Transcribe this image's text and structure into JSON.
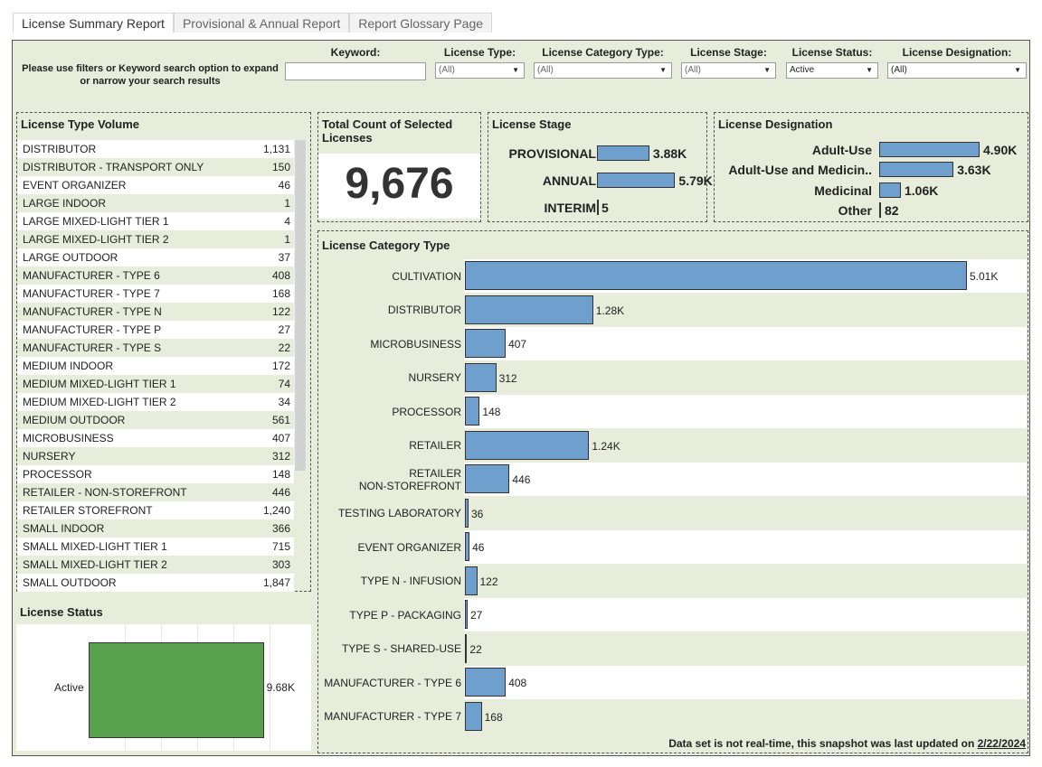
{
  "tabs": [
    {
      "label": "License Summary Report",
      "active": true
    },
    {
      "label": "Provisional & Annual Report",
      "active": false
    },
    {
      "label": "Report Glossary Page",
      "active": false
    }
  ],
  "filters": {
    "hint": "Please use filters or Keyword search option to expand or narrow your search results",
    "keyword": {
      "label": "Keyword:",
      "value": ""
    },
    "license_type": {
      "label": "License Type:",
      "value": "(All)"
    },
    "category_type": {
      "label": "License Category Type:",
      "value": "(All)"
    },
    "stage": {
      "label": "License Stage:",
      "value": "(All)"
    },
    "status": {
      "label": "License Status:",
      "value": "Active"
    },
    "designation": {
      "label": "License Designation:",
      "value": "(All)"
    }
  },
  "type_volume": {
    "title": "License Type Volume",
    "rows": [
      {
        "name": "DISTRIBUTOR",
        "count": "1,131"
      },
      {
        "name": "DISTRIBUTOR - TRANSPORT ONLY",
        "count": "150"
      },
      {
        "name": "EVENT ORGANIZER",
        "count": "46"
      },
      {
        "name": "LARGE INDOOR",
        "count": "1"
      },
      {
        "name": "LARGE MIXED-LIGHT TIER 1",
        "count": "4"
      },
      {
        "name": "LARGE MIXED-LIGHT TIER 2",
        "count": "1"
      },
      {
        "name": "LARGE OUTDOOR",
        "count": "37"
      },
      {
        "name": "MANUFACTURER - TYPE 6",
        "count": "408"
      },
      {
        "name": "MANUFACTURER - TYPE 7",
        "count": "168"
      },
      {
        "name": "MANUFACTURER - TYPE N",
        "count": "122"
      },
      {
        "name": "MANUFACTURER - TYPE P",
        "count": "27"
      },
      {
        "name": "MANUFACTURER - TYPE S",
        "count": "22"
      },
      {
        "name": "MEDIUM INDOOR",
        "count": "172"
      },
      {
        "name": "MEDIUM MIXED-LIGHT TIER 1",
        "count": "74"
      },
      {
        "name": "MEDIUM MIXED-LIGHT TIER 2",
        "count": "34"
      },
      {
        "name": "MEDIUM OUTDOOR",
        "count": "561"
      },
      {
        "name": "MICROBUSINESS",
        "count": "407"
      },
      {
        "name": "NURSERY",
        "count": "312"
      },
      {
        "name": "PROCESSOR",
        "count": "148"
      },
      {
        "name": "RETAILER - NON-STOREFRONT",
        "count": "446"
      },
      {
        "name": "RETAILER STOREFRONT",
        "count": "1,240"
      },
      {
        "name": "SMALL INDOOR",
        "count": "366"
      },
      {
        "name": "SMALL MIXED-LIGHT TIER 1",
        "count": "715"
      },
      {
        "name": "SMALL MIXED-LIGHT TIER 2",
        "count": "303"
      },
      {
        "name": "SMALL OUTDOOR",
        "count": "1,847"
      }
    ]
  },
  "total": {
    "title": "Total Count of Selected Licenses",
    "value": "9,676"
  },
  "stage": {
    "title": "License Stage",
    "rows": [
      {
        "label": "PROVISIONAL",
        "value": 3880,
        "display": "3.88K"
      },
      {
        "label": "ANNUAL",
        "value": 5790,
        "display": "5.79K"
      },
      {
        "label": "INTERIM",
        "value": 5,
        "display": "5"
      }
    ]
  },
  "designation": {
    "title": "License Designation",
    "rows": [
      {
        "label": "Adult-Use",
        "value": 4900,
        "display": "4.90K"
      },
      {
        "label": "Adult-Use and Medicin..",
        "value": 3630,
        "display": "3.63K"
      },
      {
        "label": "Medicinal",
        "value": 1060,
        "display": "1.06K"
      },
      {
        "label": "Other",
        "value": 82,
        "display": "82"
      }
    ]
  },
  "category": {
    "title": "License Category Type",
    "note_prefix": "Data set is not real-time, this snapshot was last updated on ",
    "note_date": "2/22/2024",
    "rows": [
      {
        "label": "CULTIVATION",
        "value": 5010,
        "display": "5.01K"
      },
      {
        "label": "DISTRIBUTOR",
        "value": 1280,
        "display": "1.28K"
      },
      {
        "label": "MICROBUSINESS",
        "value": 407,
        "display": "407"
      },
      {
        "label": "NURSERY",
        "value": 312,
        "display": "312"
      },
      {
        "label": "PROCESSOR",
        "value": 148,
        "display": "148"
      },
      {
        "label": "RETAILER",
        "value": 1240,
        "display": "1.24K"
      },
      {
        "label": "RETAILER\nNON-STOREFRONT",
        "value": 446,
        "display": "446"
      },
      {
        "label": "TESTING LABORATORY",
        "value": 36,
        "display": "36"
      },
      {
        "label": "EVENT ORGANIZER",
        "value": 46,
        "display": "46"
      },
      {
        "label": "TYPE N - INFUSION",
        "value": 122,
        "display": "122"
      },
      {
        "label": "TYPE P - PACKAGING",
        "value": 27,
        "display": "27"
      },
      {
        "label": "TYPE S - SHARED-USE",
        "value": 22,
        "display": "22"
      },
      {
        "label": "MANUFACTURER - TYPE 6",
        "value": 408,
        "display": "408"
      },
      {
        "label": "MANUFACTURER - TYPE 7",
        "value": 168,
        "display": "168"
      }
    ]
  },
  "status": {
    "title": "License Status",
    "label": "Active",
    "value": 9680,
    "display": "9.68K"
  },
  "colors": {
    "bar": "#6f9fcc",
    "status_bar": "#59a14f",
    "band": "#e8ecda"
  }
}
